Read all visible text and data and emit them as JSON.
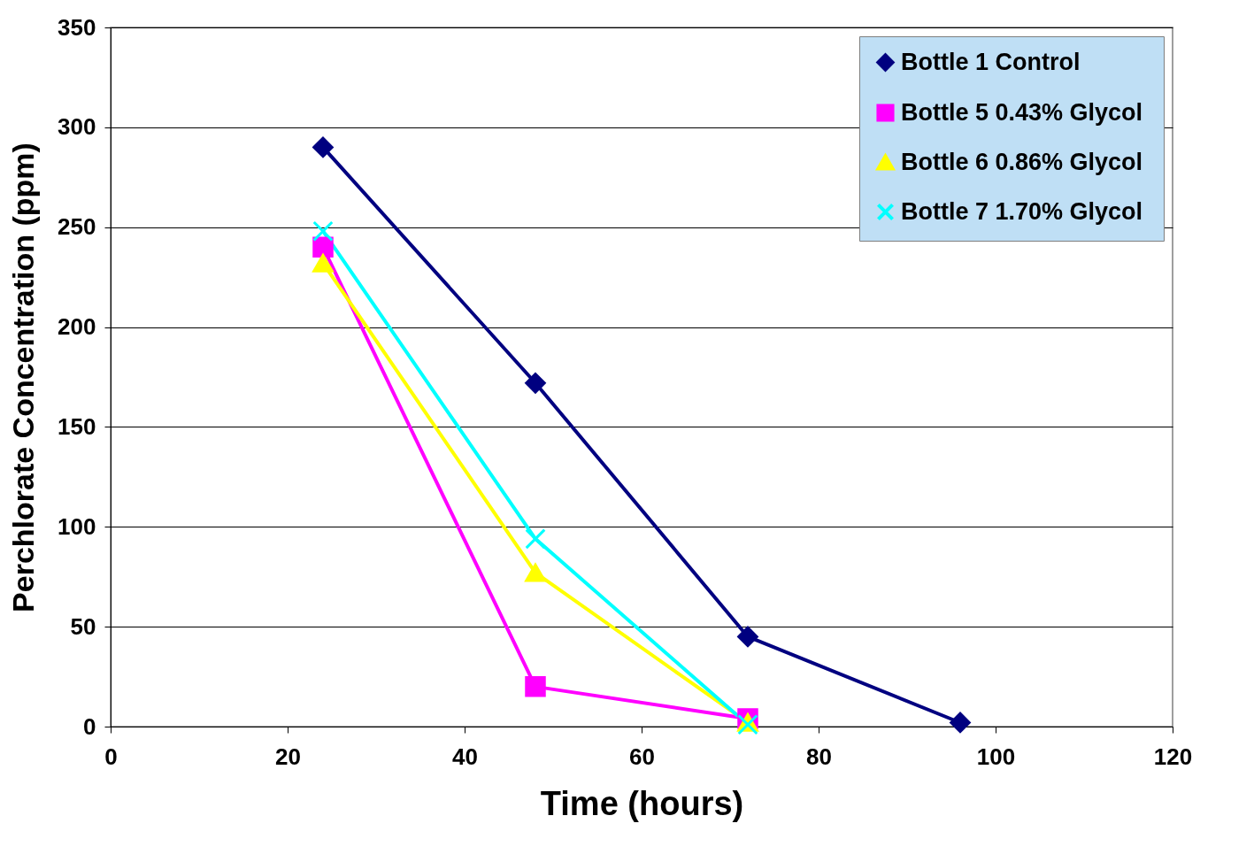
{
  "chart_data": {
    "type": "line",
    "xlabel": "Time (hours)",
    "ylabel": "Perchlorate Concentration (ppm)",
    "x": [
      24,
      48,
      72,
      96
    ],
    "series": [
      {
        "name": "Bottle 1  Control",
        "color": "#000080",
        "marker": "diamond",
        "values": [
          290,
          172,
          45,
          2
        ]
      },
      {
        "name": "Bottle 5  0.43% Glycol",
        "color": "#ff00ff",
        "marker": "square",
        "values": [
          240,
          20,
          4,
          null
        ]
      },
      {
        "name": "Bottle 6  0.86% Glycol",
        "color": "#ffff00",
        "marker": "triangle",
        "values": [
          232,
          77,
          2,
          null
        ]
      },
      {
        "name": "Bottle 7  1.70% Glycol",
        "color": "#00ffff",
        "marker": "cross",
        "values": [
          248,
          94,
          1,
          null
        ]
      }
    ],
    "xlim": [
      0,
      120
    ],
    "xticks": [
      0,
      20,
      40,
      60,
      80,
      100,
      120
    ],
    "ylim": [
      0,
      350
    ],
    "yticks": [
      0,
      50,
      100,
      150,
      200,
      250,
      300,
      350
    ],
    "grid": "y",
    "legend": "top right",
    "line_style": "solid"
  }
}
